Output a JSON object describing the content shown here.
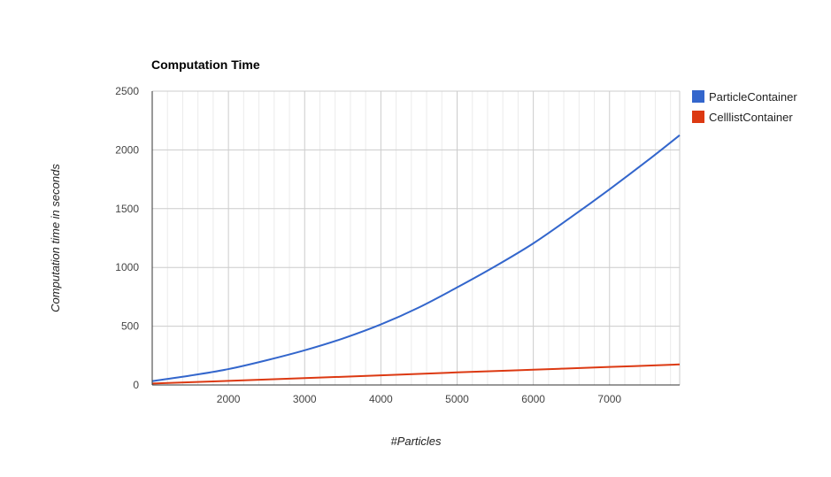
{
  "chart_data": {
    "type": "line",
    "title": "Computation Time",
    "xlabel": "#Particles",
    "ylabel": "Computation time in seconds",
    "xlim": [
      1000,
      7920
    ],
    "ylim": [
      0,
      2500
    ],
    "x_ticks": [
      2000,
      3000,
      4000,
      5000,
      6000,
      7000
    ],
    "y_ticks": [
      0,
      500,
      1000,
      1500,
      2000,
      2500
    ],
    "x_minor_step": 200,
    "grid": true,
    "legend_position": "right",
    "series": [
      {
        "name": "ParticleContainer",
        "color": "#3366cc",
        "x": [
          1000,
          1500,
          2000,
          2500,
          3000,
          3500,
          4000,
          4500,
          5000,
          5500,
          6000,
          6500,
          7000,
          7500,
          7920
        ],
        "values": [
          33,
          80,
          135,
          210,
          295,
          395,
          515,
          660,
          830,
          1010,
          1205,
          1430,
          1665,
          1910,
          2125
        ]
      },
      {
        "name": "CelllistContainer",
        "color": "#dc3912",
        "x": [
          1000,
          2000,
          3000,
          4000,
          5000,
          6000,
          7000,
          7920
        ],
        "values": [
          12,
          35,
          58,
          82,
          107,
          130,
          153,
          175
        ]
      }
    ]
  }
}
